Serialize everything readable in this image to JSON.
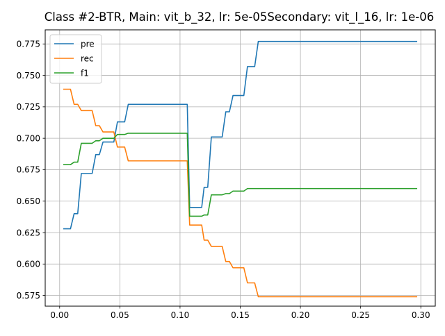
{
  "chart_data": {
    "type": "line",
    "title": "Class #2-BTR, Main: vit_b_32, lr: 5e-05Secondary: vit_l_16, lr: 1e-06",
    "xlabel": "",
    "ylabel": "",
    "xlim": [
      -0.012,
      0.312
    ],
    "ylim": [
      0.5665,
      0.7862
    ],
    "xticks": [
      0.0,
      0.05,
      0.1,
      0.15,
      0.2,
      0.25,
      0.3
    ],
    "xtick_labels": [
      "0.00",
      "0.05",
      "0.10",
      "0.15",
      "0.20",
      "0.25",
      "0.30"
    ],
    "yticks": [
      0.575,
      0.6,
      0.625,
      0.65,
      0.675,
      0.7,
      0.725,
      0.75,
      0.775
    ],
    "ytick_labels": [
      "0.575",
      "0.600",
      "0.625",
      "0.650",
      "0.675",
      "0.700",
      "0.725",
      "0.750",
      "0.775"
    ],
    "grid": true,
    "legend_position": "top-left",
    "series": [
      {
        "name": "pre",
        "color": "#1f77b4",
        "points": [
          [
            0.003,
            0.628
          ],
          [
            0.009,
            0.628
          ],
          [
            0.012,
            0.64
          ],
          [
            0.015,
            0.64
          ],
          [
            0.018,
            0.672
          ],
          [
            0.027,
            0.672
          ],
          [
            0.03,
            0.687
          ],
          [
            0.033,
            0.687
          ],
          [
            0.036,
            0.697
          ],
          [
            0.045,
            0.697
          ],
          [
            0.048,
            0.713
          ],
          [
            0.054,
            0.713
          ],
          [
            0.057,
            0.727
          ],
          [
            0.106,
            0.727
          ],
          [
            0.108,
            0.645
          ],
          [
            0.118,
            0.645
          ],
          [
            0.12,
            0.661
          ],
          [
            0.123,
            0.661
          ],
          [
            0.126,
            0.701
          ],
          [
            0.135,
            0.701
          ],
          [
            0.138,
            0.721
          ],
          [
            0.141,
            0.721
          ],
          [
            0.144,
            0.734
          ],
          [
            0.153,
            0.734
          ],
          [
            0.156,
            0.757
          ],
          [
            0.162,
            0.757
          ],
          [
            0.165,
            0.777
          ],
          [
            0.297,
            0.777
          ]
        ]
      },
      {
        "name": "rec",
        "color": "#ff7f0e",
        "points": [
          [
            0.003,
            0.739
          ],
          [
            0.009,
            0.739
          ],
          [
            0.012,
            0.727
          ],
          [
            0.015,
            0.727
          ],
          [
            0.018,
            0.722
          ],
          [
            0.027,
            0.722
          ],
          [
            0.03,
            0.71
          ],
          [
            0.033,
            0.71
          ],
          [
            0.036,
            0.705
          ],
          [
            0.045,
            0.705
          ],
          [
            0.048,
            0.693
          ],
          [
            0.054,
            0.693
          ],
          [
            0.057,
            0.682
          ],
          [
            0.106,
            0.682
          ],
          [
            0.108,
            0.631
          ],
          [
            0.118,
            0.631
          ],
          [
            0.12,
            0.619
          ],
          [
            0.123,
            0.619
          ],
          [
            0.126,
            0.614
          ],
          [
            0.135,
            0.614
          ],
          [
            0.138,
            0.602
          ],
          [
            0.141,
            0.602
          ],
          [
            0.144,
            0.597
          ],
          [
            0.153,
            0.597
          ],
          [
            0.156,
            0.585
          ],
          [
            0.162,
            0.585
          ],
          [
            0.165,
            0.574
          ],
          [
            0.297,
            0.574
          ]
        ]
      },
      {
        "name": "f1",
        "color": "#2ca02c",
        "points": [
          [
            0.003,
            0.679
          ],
          [
            0.009,
            0.679
          ],
          [
            0.012,
            0.681
          ],
          [
            0.015,
            0.681
          ],
          [
            0.018,
            0.696
          ],
          [
            0.027,
            0.696
          ],
          [
            0.03,
            0.698
          ],
          [
            0.033,
            0.698
          ],
          [
            0.036,
            0.7
          ],
          [
            0.045,
            0.7
          ],
          [
            0.048,
            0.703
          ],
          [
            0.054,
            0.703
          ],
          [
            0.057,
            0.704
          ],
          [
            0.106,
            0.704
          ],
          [
            0.108,
            0.638
          ],
          [
            0.118,
            0.638
          ],
          [
            0.12,
            0.639
          ],
          [
            0.123,
            0.639
          ],
          [
            0.126,
            0.655
          ],
          [
            0.135,
            0.655
          ],
          [
            0.138,
            0.656
          ],
          [
            0.141,
            0.656
          ],
          [
            0.144,
            0.658
          ],
          [
            0.153,
            0.658
          ],
          [
            0.156,
            0.66
          ],
          [
            0.297,
            0.66
          ]
        ]
      }
    ]
  }
}
